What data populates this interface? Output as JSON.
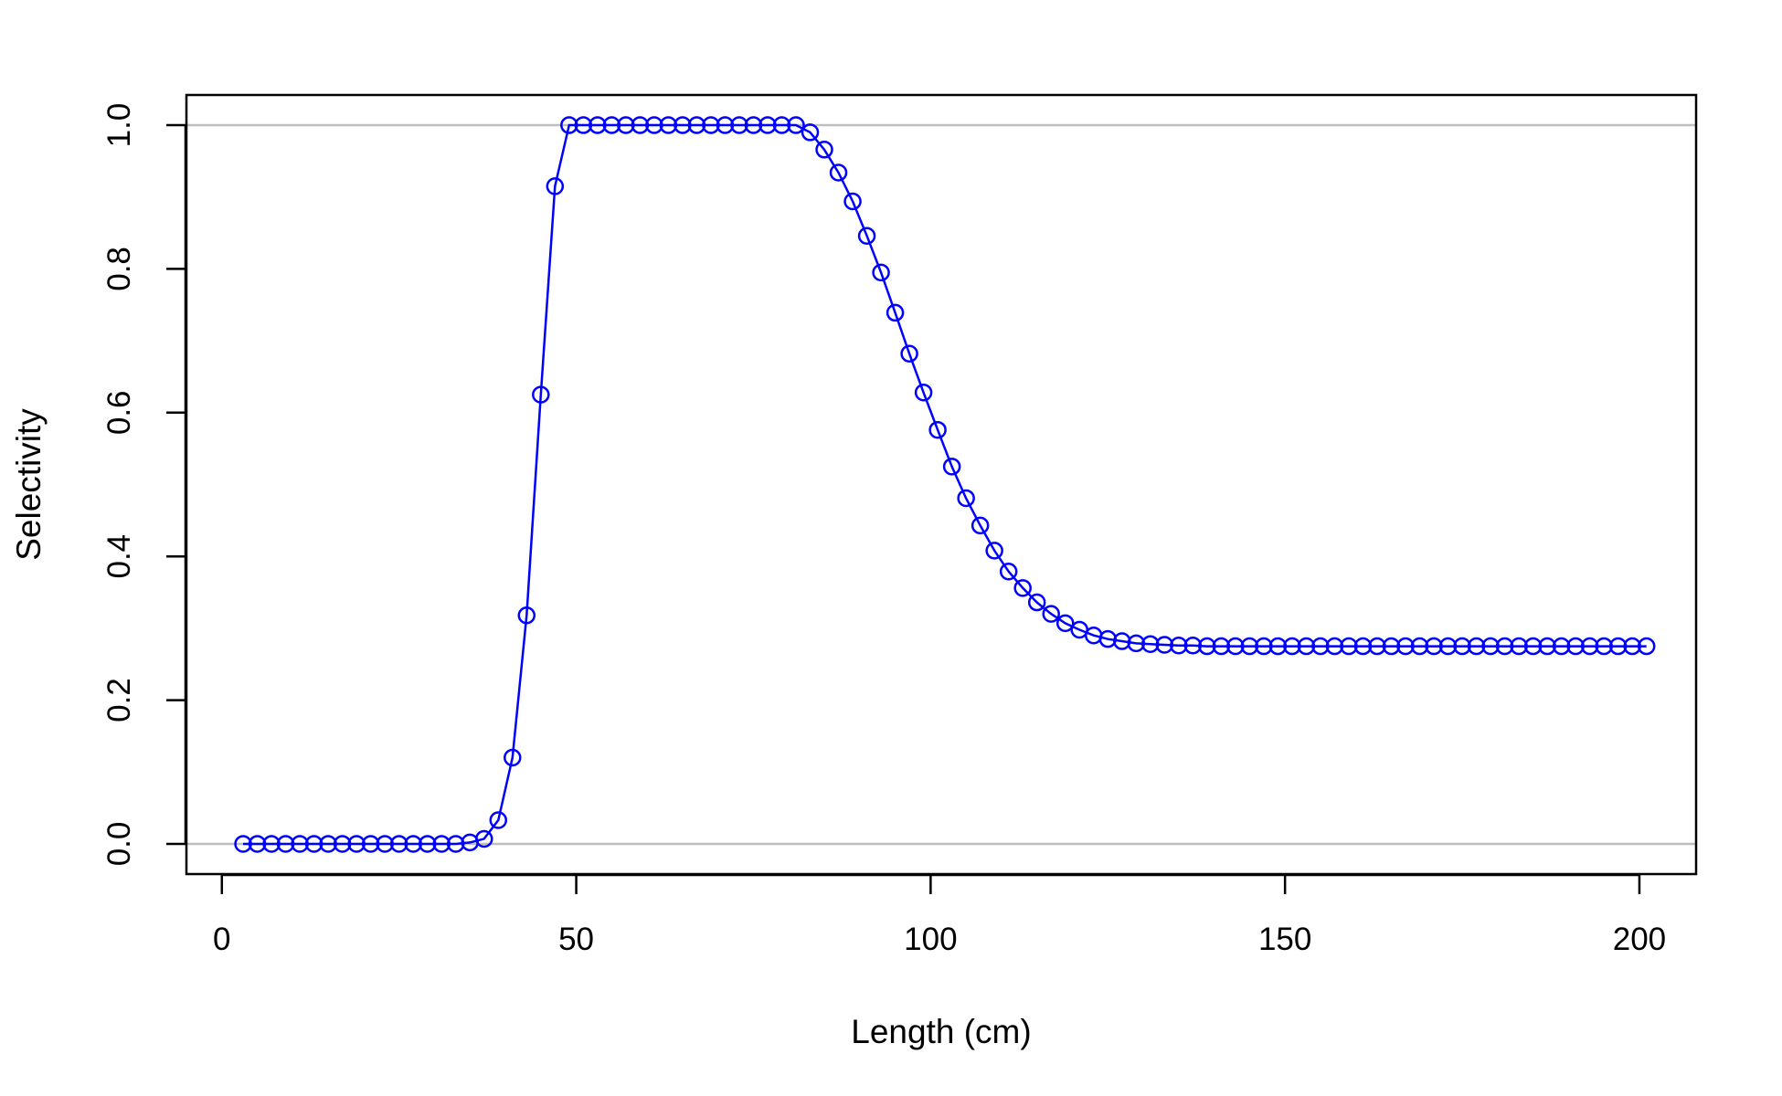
{
  "chart_data": {
    "type": "line",
    "title": "",
    "xlabel": "Length (cm)",
    "ylabel": "Selectivity",
    "xlim": [
      -5,
      208
    ],
    "ylim": [
      -0.042,
      1.042
    ],
    "xticks": [
      0,
      50,
      100,
      150,
      200
    ],
    "xtick_labels": [
      "0",
      "50",
      "100",
      "150",
      "200"
    ],
    "yticks": [
      0.0,
      0.2,
      0.4,
      0.6,
      0.8,
      1.0
    ],
    "ytick_labels": [
      "0.0",
      "0.2",
      "0.4",
      "0.6",
      "0.8",
      "1.0"
    ],
    "reference_lines": [
      0,
      1
    ],
    "grid": false,
    "legend": "none",
    "colors": {
      "series": "#0000ff",
      "reference": "#bebebe",
      "axis": "#000000"
    },
    "series": [
      {
        "x": [
          3,
          5,
          7,
          9,
          11,
          13,
          15,
          17,
          19,
          21,
          23,
          25,
          27,
          29,
          31,
          33,
          35,
          37,
          39,
          41,
          43,
          45,
          47,
          49,
          51,
          53,
          55,
          57,
          59,
          61,
          63,
          65,
          67,
          69,
          71,
          73,
          75,
          77,
          79,
          81,
          83,
          85,
          87,
          89,
          91,
          93,
          95,
          97,
          99,
          101,
          103,
          105,
          107,
          109,
          111,
          113,
          115,
          117,
          119,
          121,
          123,
          125,
          127,
          129,
          131,
          133,
          135,
          137,
          139,
          141,
          143,
          145,
          147,
          149,
          151,
          153,
          155,
          157,
          159,
          161,
          163,
          165,
          167,
          169,
          171,
          173,
          175,
          177,
          179,
          181,
          183,
          185,
          187,
          189,
          191,
          193,
          195,
          197,
          199,
          201
        ],
        "values": [
          0,
          0,
          0,
          0,
          0,
          0,
          0,
          0,
          0,
          0,
          0,
          0,
          0,
          0,
          0,
          0,
          0.002,
          0.007,
          0.033,
          0.12,
          0.318,
          0.625,
          0.915,
          1,
          1,
          1,
          1,
          1,
          1,
          1,
          1,
          1,
          1,
          1,
          1,
          1,
          1,
          1,
          1,
          1,
          0.99,
          0.966,
          0.934,
          0.894,
          0.846,
          0.795,
          0.739,
          0.682,
          0.628,
          0.576,
          0.525,
          0.481,
          0.443,
          0.408,
          0.379,
          0.356,
          0.336,
          0.32,
          0.307,
          0.298,
          0.29,
          0.285,
          0.282,
          0.279,
          0.278,
          0.277,
          0.276,
          0.276,
          0.275,
          0.275,
          0.275,
          0.275,
          0.275,
          0.275,
          0.275,
          0.275,
          0.275,
          0.275,
          0.275,
          0.275,
          0.275,
          0.275,
          0.275,
          0.275,
          0.275,
          0.275,
          0.275,
          0.275,
          0.275,
          0.275,
          0.275,
          0.275,
          0.275,
          0.275,
          0.275,
          0.275,
          0.275,
          0.275,
          0.275,
          0.275
        ]
      }
    ]
  }
}
